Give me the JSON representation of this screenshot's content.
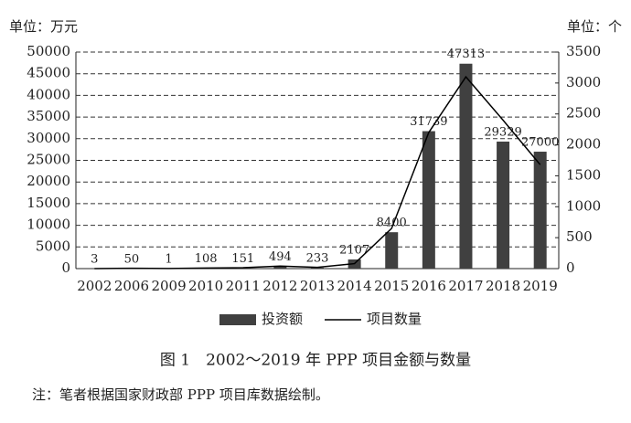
{
  "chart_data": {
    "type": "bar-line",
    "y_label": "单位：万元",
    "y2_label": "单位：个",
    "caption": "图 1　2002～2019 年 PPP 项目金额与数量",
    "note": "注：笔者根据国家财政部 PPP 项目库数据绘制。",
    "categories": [
      "2002",
      "2006",
      "2009",
      "2010",
      "2011",
      "2012",
      "2013",
      "2014",
      "2015",
      "2016",
      "2017",
      "2018",
      "2019"
    ],
    "series": [
      {
        "name": "投资额",
        "kind": "bar",
        "color": "#404040",
        "values": [
          3,
          50,
          1,
          108,
          151,
          494,
          233,
          2107,
          8400,
          31739,
          47313,
          29329,
          27000
        ]
      },
      {
        "name": "项目数量",
        "kind": "line",
        "color": "#000000",
        "axis": "y2",
        "values": [
          0,
          5,
          1,
          10,
          15,
          40,
          20,
          80,
          650,
          2200,
          3100,
          2400,
          1680
        ]
      }
    ],
    "ylim": [
      0,
      50000
    ],
    "yticks": [
      0,
      5000,
      10000,
      15000,
      20000,
      25000,
      30000,
      35000,
      40000,
      45000,
      50000
    ],
    "y2lim": [
      0,
      3500
    ],
    "y2ticks": [
      0,
      500,
      1000,
      1500,
      2000,
      2500,
      3000,
      3500
    ],
    "grid": true,
    "legend": "bottom"
  }
}
